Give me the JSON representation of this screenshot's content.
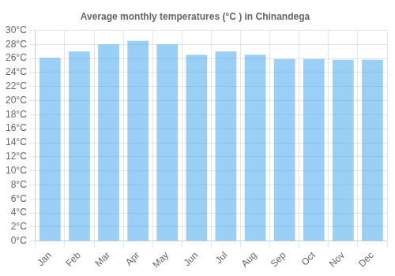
{
  "chart_data": {
    "type": "bar",
    "title": "Average monthly temperatures (°C ) in Chinandega",
    "categories": [
      "Jan",
      "Feb",
      "Mar",
      "Apr",
      "May",
      "Jun",
      "Jul",
      "Aug",
      "Sep",
      "Oct",
      "Nov",
      "Dec"
    ],
    "values": [
      26.1,
      27.0,
      28.0,
      28.5,
      28.0,
      26.5,
      27.0,
      26.5,
      25.9,
      25.9,
      25.8,
      25.8
    ],
    "ylim": [
      0,
      30
    ],
    "yticks": [
      {
        "value": 0,
        "label": "0°C"
      },
      {
        "value": 2,
        "label": "2°C"
      },
      {
        "value": 4,
        "label": "4°C"
      },
      {
        "value": 6,
        "label": "6°C"
      },
      {
        "value": 8,
        "label": "8°C"
      },
      {
        "value": 10,
        "label": "10°C"
      },
      {
        "value": 12,
        "label": "12°C"
      },
      {
        "value": 14,
        "label": "14°C"
      },
      {
        "value": 16,
        "label": "16°C"
      },
      {
        "value": 18,
        "label": "18°C"
      },
      {
        "value": 20,
        "label": "20°C"
      },
      {
        "value": 22,
        "label": "22°C"
      },
      {
        "value": 24,
        "label": "24°C"
      },
      {
        "value": 26,
        "label": "26°C"
      },
      {
        "value": 28,
        "label": "28°C"
      },
      {
        "value": 30,
        "label": "30°C"
      }
    ],
    "grid": true
  }
}
